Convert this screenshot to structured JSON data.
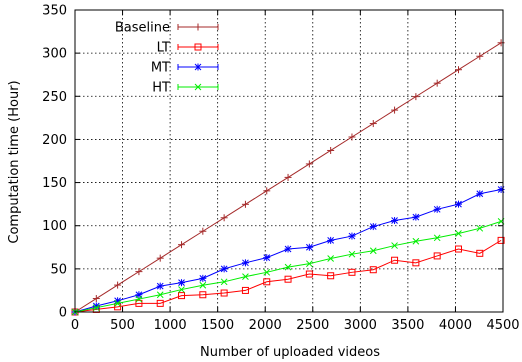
{
  "chart_data": {
    "type": "line",
    "title": "",
    "xlabel": "Number of uploaded videos",
    "ylabel": "Computation time (Hour)",
    "xlim": [
      0,
      4500
    ],
    "ylim": [
      0,
      350
    ],
    "xticks": [
      0,
      500,
      1000,
      1500,
      2000,
      2500,
      3000,
      3500,
      4000,
      4500
    ],
    "yticks": [
      0,
      50,
      100,
      150,
      200,
      250,
      300,
      350
    ],
    "grid": true,
    "legend_position": "top-left",
    "x": [
      0,
      224,
      448,
      672,
      896,
      1120,
      1344,
      1568,
      1792,
      2016,
      2240,
      2464,
      2688,
      2912,
      3136,
      3360,
      3584,
      3808,
      4032,
      4256,
      4480
    ],
    "series": [
      {
        "name": "Baseline",
        "color": "#a52a2a",
        "marker": "plus",
        "values": [
          0,
          15.6,
          31.2,
          46.8,
          62.4,
          78,
          93.6,
          109.2,
          124.8,
          140.4,
          156,
          171.6,
          187.2,
          202.8,
          218.4,
          234,
          249.6,
          265.2,
          280.8,
          296.4,
          312
        ]
      },
      {
        "name": "LT",
        "color": "#ff0000",
        "marker": "square",
        "values": [
          0,
          3,
          6,
          10,
          10,
          19,
          20,
          22,
          25,
          35,
          38,
          44,
          42,
          46,
          49,
          60,
          57,
          65,
          73,
          68,
          83
        ]
      },
      {
        "name": "MT",
        "color": "#0000ff",
        "marker": "star",
        "values": [
          0,
          7,
          13,
          20,
          30,
          34,
          39,
          50,
          57,
          63,
          73,
          75,
          83,
          88,
          99,
          106,
          110,
          119,
          125,
          137,
          142
        ]
      },
      {
        "name": "HT",
        "color": "#00ee00",
        "marker": "cross",
        "values": [
          0,
          5,
          10,
          15,
          20,
          26,
          31,
          35,
          41,
          46,
          52,
          56,
          62,
          67,
          71,
          77,
          82,
          86,
          91,
          97,
          105
        ]
      }
    ]
  }
}
